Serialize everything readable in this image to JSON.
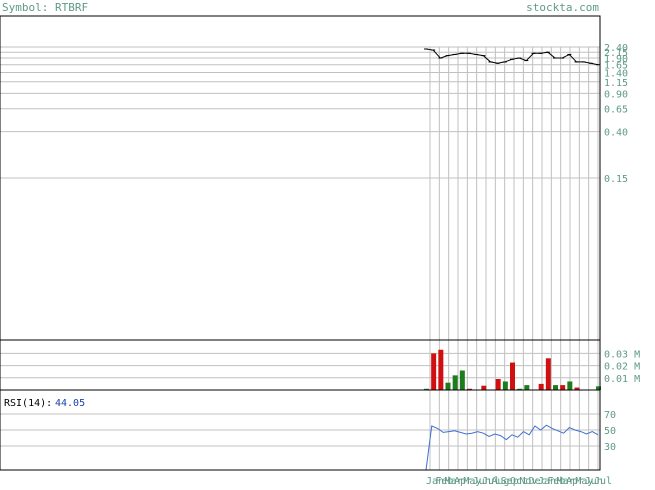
{
  "header": {
    "symbol_label": "Symbol: RTBRF",
    "site_label": "stockta.com"
  },
  "colors": {
    "border": "#000000",
    "grid": "#c0c0c0",
    "text_header": "#5f9a87",
    "axis_text": "#5f9a87",
    "price_line": "#000000",
    "volume_up": "#1e7b1e",
    "volume_down": "#d01010",
    "rsi_line": "#3f6fd6",
    "rsi_value": "#1a3fae"
  },
  "chart_data": [
    {
      "type": "line",
      "name": "price",
      "yscale": "log",
      "ylim": [
        0.1,
        2.6
      ],
      "y_ticks": [
        "2.40",
        "2.15",
        "1.90",
        "1.65",
        "1.40",
        "1.15",
        "0.90",
        "0.65",
        "0.40",
        "0.15"
      ],
      "x_ticks": [
        "Jan",
        "Feb",
        "Mar",
        "Apr",
        "May",
        "Jun",
        "Jul",
        "Aug",
        "Sep",
        "Oct",
        "Nov",
        "Dec",
        "Jan",
        "Feb",
        "Mar",
        "Apr",
        "May",
        "Jun",
        "Jul"
      ],
      "x": [
        0,
        1,
        2,
        3,
        4,
        5,
        6,
        7,
        8,
        9,
        10,
        11,
        12,
        13,
        14,
        15,
        16,
        17,
        18,
        19,
        20,
        21,
        22,
        23,
        24
      ],
      "values": [
        2.3,
        2.25,
        1.9,
        2.0,
        2.05,
        2.1,
        2.1,
        2.05,
        2.0,
        1.75,
        1.7,
        1.75,
        1.85,
        1.9,
        1.8,
        2.1,
        2.1,
        2.15,
        1.9,
        1.9,
        2.05,
        1.75,
        1.75,
        1.7,
        1.65
      ]
    },
    {
      "type": "bar",
      "name": "volume",
      "y_ticks": [
        "0.03 M",
        "0.02 M",
        "0.01 M"
      ],
      "ylim": [
        0,
        0.041
      ],
      "values": [
        0.001,
        0.03,
        0.033,
        0.006,
        0.012,
        0.016,
        0.001,
        0.0,
        0.0035,
        0.0,
        0.009,
        0.007,
        0.0225,
        0.001,
        0.004,
        0.0,
        0.005,
        0.026,
        0.004,
        0.004,
        0.007,
        0.002,
        0.0,
        0.0,
        0.003
      ],
      "bar_colors": [
        "g",
        "r",
        "r",
        "g",
        "g",
        "g",
        "r",
        "g",
        "r",
        "g",
        "r",
        "g",
        "r",
        "g",
        "g",
        "r",
        "r",
        "r",
        "g",
        "r",
        "g",
        "r",
        "g",
        "r",
        "g"
      ]
    },
    {
      "type": "line",
      "name": "rsi",
      "label": "RSI(14):",
      "value_label": "44.05",
      "y_ticks": [
        "70",
        "50",
        "30"
      ],
      "ylim": [
        0,
        100
      ],
      "values": [
        0,
        55,
        52,
        47,
        48,
        49,
        47,
        45,
        46,
        48,
        46,
        42,
        45,
        43,
        38,
        44,
        41,
        48,
        44,
        55,
        50,
        56,
        52,
        49,
        46,
        53,
        50,
        48,
        45,
        48,
        44
      ]
    }
  ]
}
